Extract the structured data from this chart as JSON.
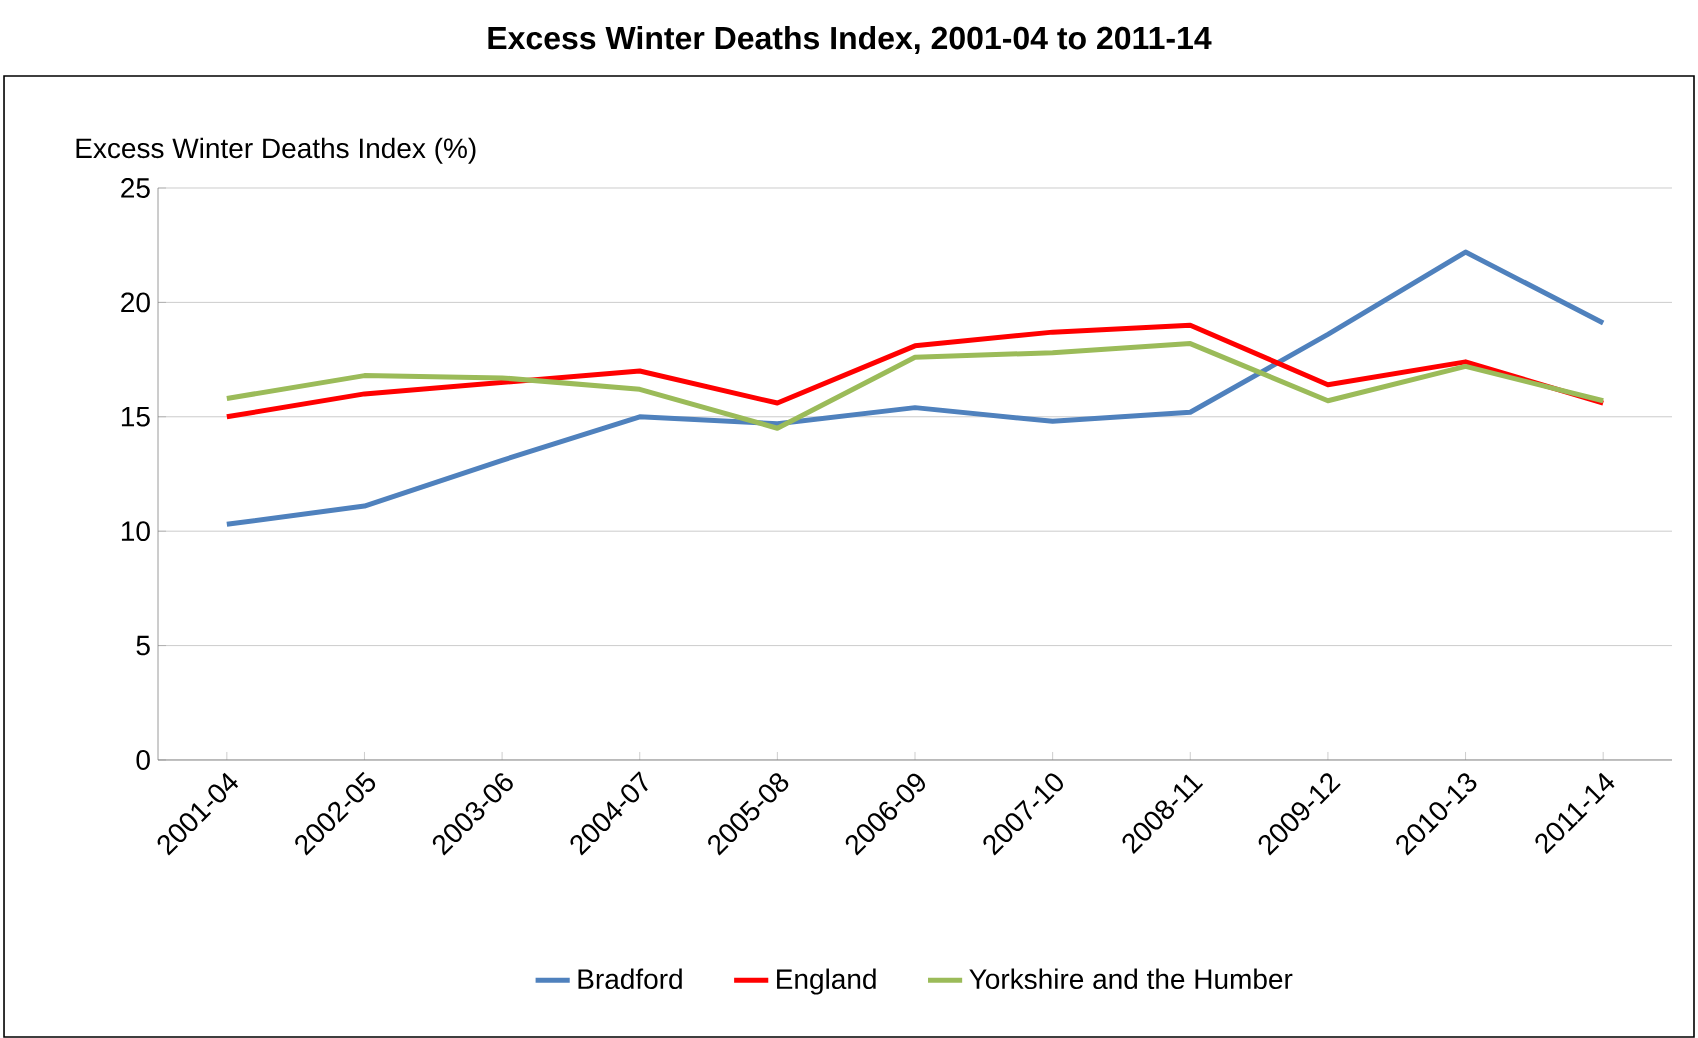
{
  "chart_data": {
    "type": "line",
    "title": "Excess Winter Deaths Index, 2001-04 to 2011-14",
    "ylabel": "Excess Winter Deaths  Index (%)",
    "categories": [
      "2001-04",
      "2002-05",
      "2003-06",
      "2004-07",
      "2005-08",
      "2006-09",
      "2007-10",
      "2008-11",
      "2009-12",
      "2010-13",
      "2011-14"
    ],
    "series": [
      {
        "name": "Bradford",
        "color": "#4f81bd",
        "values": [
          10.3,
          11.1,
          13.1,
          15.0,
          14.7,
          15.4,
          14.8,
          15.2,
          18.6,
          22.2,
          19.1
        ]
      },
      {
        "name": "England",
        "color": "#ff0000",
        "values": [
          15.0,
          16.0,
          16.5,
          17.0,
          15.6,
          18.1,
          18.7,
          19.0,
          16.4,
          17.4,
          15.6
        ]
      },
      {
        "name": "Yorkshire and the Humber",
        "color": "#9bbb59",
        "values": [
          15.8,
          16.8,
          16.7,
          16.2,
          14.5,
          17.6,
          17.8,
          18.2,
          15.7,
          17.2,
          15.7
        ]
      }
    ],
    "ylim": [
      0,
      25
    ],
    "yticks": [
      0,
      5,
      10,
      15,
      20,
      25
    ],
    "grid": "y",
    "legend": "bottom",
    "marker": "none",
    "line_style": "solid"
  }
}
